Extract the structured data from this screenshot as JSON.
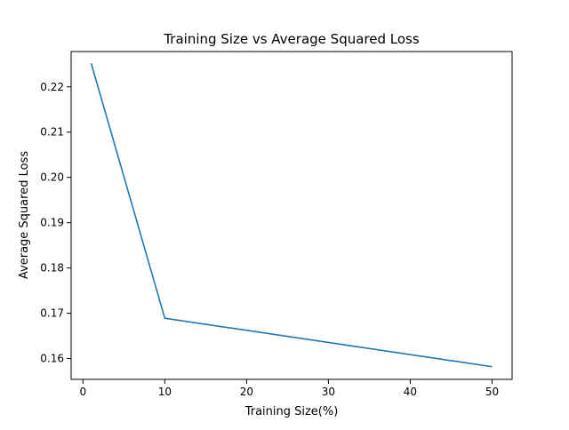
{
  "chart_data": {
    "type": "line",
    "title": "Training Size vs Average Squared Loss",
    "xlabel": "Training Size(%)",
    "ylabel": "Average Squared Loss",
    "xlim": [
      -1.45,
      52.45
    ],
    "ylim": [
      0.1554,
      0.2278
    ],
    "xticks": [
      0,
      10,
      20,
      30,
      40,
      50
    ],
    "yticks": [
      0.16,
      0.17,
      0.18,
      0.19,
      0.2,
      0.21,
      0.22
    ],
    "ytick_labels": [
      "0.16",
      "0.17",
      "0.18",
      "0.19",
      "0.20",
      "0.21",
      "0.22"
    ],
    "grid": false,
    "series": [
      {
        "color": "#1f77b4",
        "x": [
          1,
          10,
          50
        ],
        "y": [
          0.2252,
          0.1689,
          0.1582
        ]
      }
    ]
  }
}
